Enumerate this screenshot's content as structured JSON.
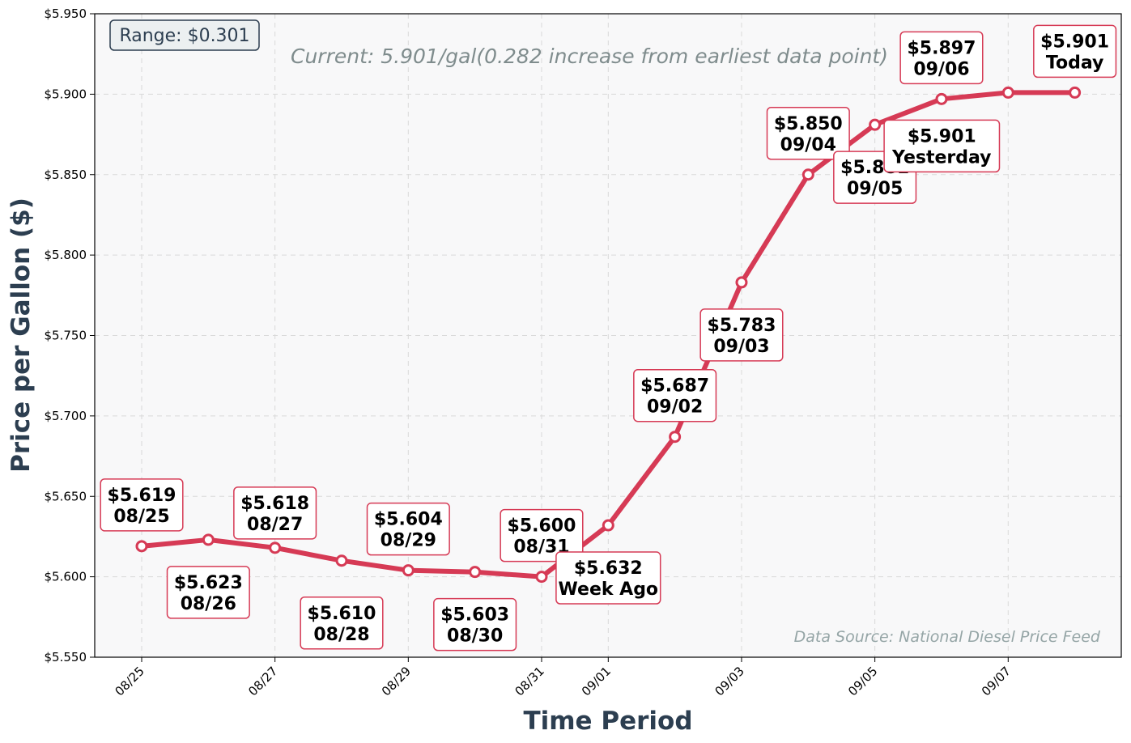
{
  "chart_data": {
    "type": "line",
    "title": "",
    "xlabel": "Time Period",
    "ylabel": "Price per Gallon ($)",
    "ylim": [
      5.55,
      5.95
    ],
    "y_ticks": [
      "$5.550",
      "$5.600",
      "$5.650",
      "$5.700",
      "$5.750",
      "$5.800",
      "$5.850",
      "$5.900",
      "$5.950"
    ],
    "x_ticks": [
      "08/25",
      "08/27",
      "08/29",
      "08/31",
      "09/01",
      "09/03",
      "09/05",
      "09/07"
    ],
    "grid": true,
    "series": [
      {
        "color": "#d63a55",
        "points": [
          {
            "x": "08/25",
            "y": 5.619,
            "label_price": "$5.619",
            "label_day": "08/25"
          },
          {
            "x": "08/26",
            "y": 5.623,
            "label_price": "$5.623",
            "label_day": "08/26"
          },
          {
            "x": "08/27",
            "y": 5.618,
            "label_price": "$5.618",
            "label_day": "08/27"
          },
          {
            "x": "08/28",
            "y": 5.61,
            "label_price": "$5.610",
            "label_day": "08/28"
          },
          {
            "x": "08/29",
            "y": 5.604,
            "label_price": "$5.604",
            "label_day": "08/29"
          },
          {
            "x": "08/30",
            "y": 5.603,
            "label_price": "$5.603",
            "label_day": "08/30"
          },
          {
            "x": "08/31",
            "y": 5.6,
            "label_price": "$5.600",
            "label_day": "08/31"
          },
          {
            "x": "09/01",
            "y": 5.632,
            "label_price": "$5.632",
            "label_day": "Week Ago"
          },
          {
            "x": "09/02",
            "y": 5.687,
            "label_price": "$5.687",
            "label_day": "09/02"
          },
          {
            "x": "09/03",
            "y": 5.783,
            "label_price": "$5.783",
            "label_day": "09/03"
          },
          {
            "x": "09/04",
            "y": 5.85,
            "label_price": "$5.850",
            "label_day": "09/04"
          },
          {
            "x": "09/05",
            "y": 5.881,
            "label_price": "$5.881",
            "label_day": "09/05"
          },
          {
            "x": "09/06",
            "y": 5.897,
            "label_price": "$5.897",
            "label_day": "09/06"
          },
          {
            "x": "09/07",
            "y": 5.901,
            "label_price": "$5.901",
            "label_day": "Yesterday"
          },
          {
            "x": "09/08",
            "y": 5.901,
            "label_price": "$5.901",
            "label_day": "Today"
          }
        ]
      }
    ],
    "range_box": "Range: $0.301",
    "current_annotation": "Current: 5.901/gal(0.282 increase from earliest data point)",
    "source_note": "Data Source: National Diesel Price Feed"
  },
  "colors": {
    "line": "#d63a55",
    "plot_background": "#f8f8f9",
    "axis_title": "#2c3e50",
    "annotation": "#7f8c8d",
    "source_note": "#95a5a6"
  }
}
